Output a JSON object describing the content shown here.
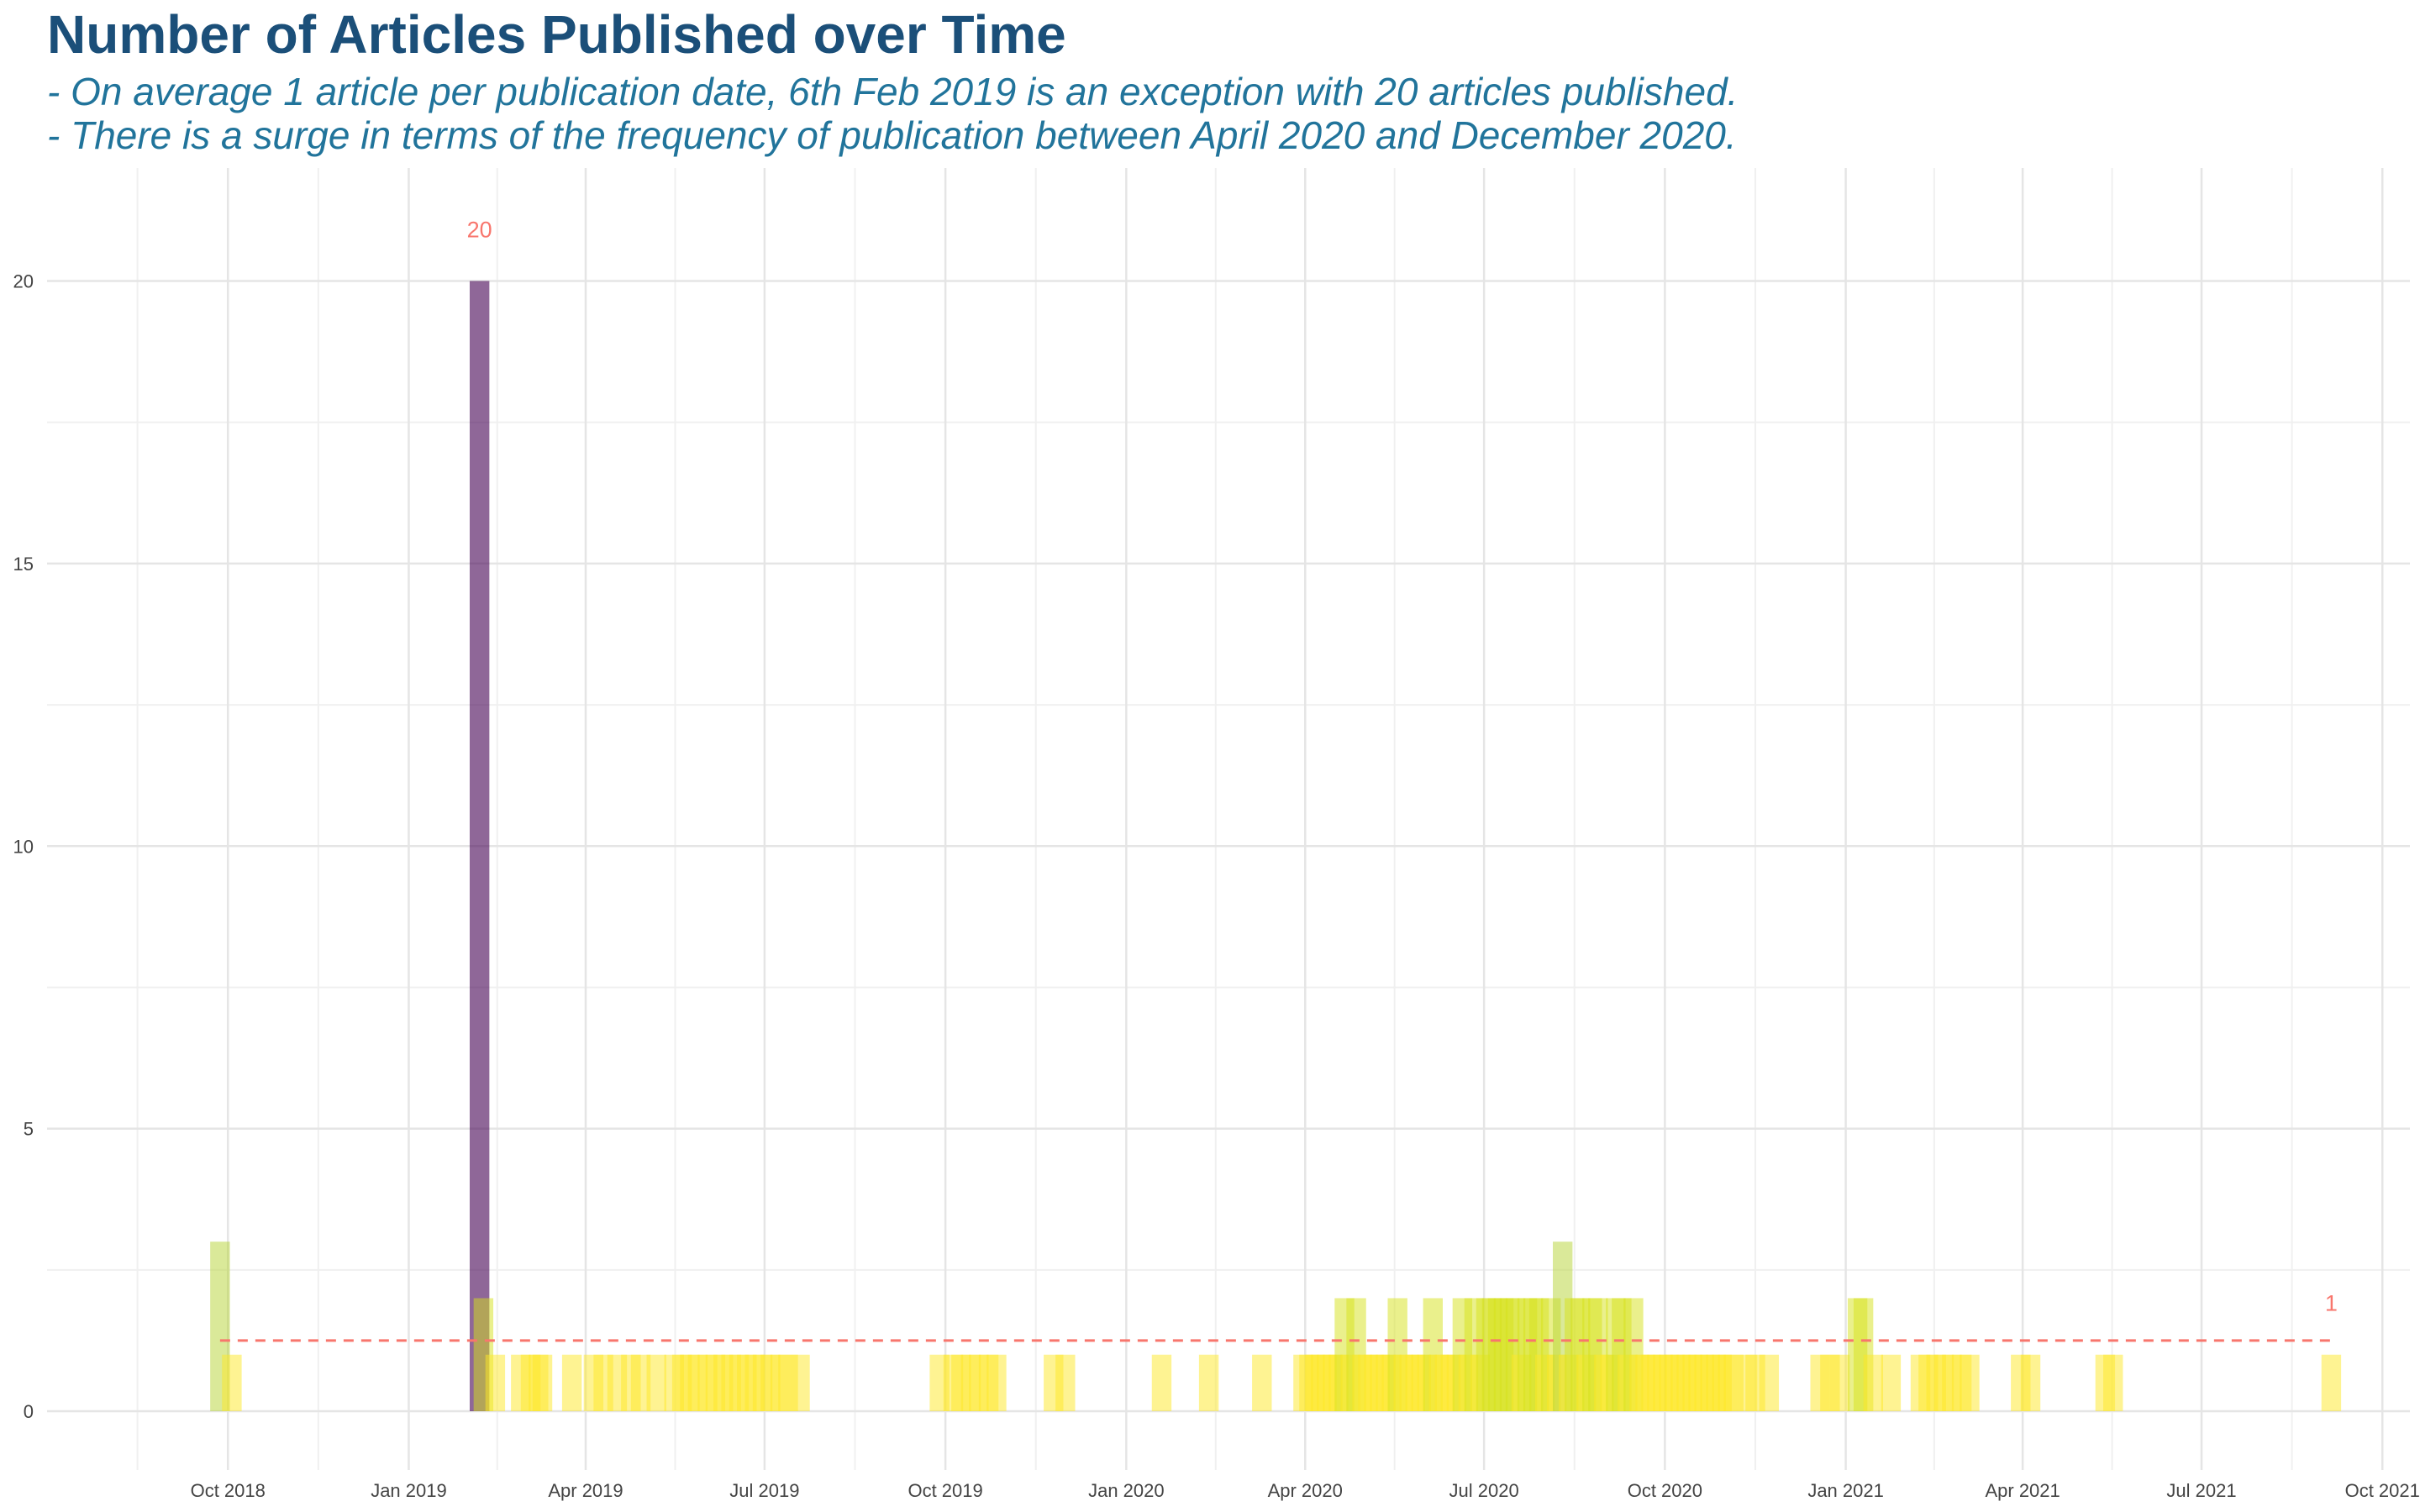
{
  "chart_data": {
    "type": "bar",
    "title": "Number of Articles Published over Time",
    "subtitle": [
      "- On average 1 article per publication date, 6th Feb 2019 is an exception with 20 articles published.",
      "- There is a surge in terms of the frequency of publication between April 2020 and December 2020."
    ],
    "xlabel": "",
    "ylabel": "",
    "x_type": "date",
    "xlim": [
      "2018-07-01",
      "2021-10-15"
    ],
    "ylim": [
      0,
      22
    ],
    "grid": true,
    "legend": "none",
    "y_ticks": [
      0,
      5,
      10,
      15,
      20
    ],
    "x_ticks": [
      {
        "date": "2018-10-01",
        "label": "Oct 2018"
      },
      {
        "date": "2019-01-01",
        "label": "Jan 2019"
      },
      {
        "date": "2019-04-01",
        "label": "Apr 2019"
      },
      {
        "date": "2019-07-01",
        "label": "Jul 2019"
      },
      {
        "date": "2019-10-01",
        "label": "Oct 2019"
      },
      {
        "date": "2020-01-01",
        "label": "Jan 2020"
      },
      {
        "date": "2020-04-01",
        "label": "Apr 2020"
      },
      {
        "date": "2020-07-01",
        "label": "Jul 2020"
      },
      {
        "date": "2020-10-01",
        "label": "Oct 2020"
      },
      {
        "date": "2021-01-01",
        "label": "Jan 2021"
      },
      {
        "date": "2021-04-01",
        "label": "Apr 2021"
      },
      {
        "date": "2021-07-01",
        "label": "Jul 2021"
      },
      {
        "date": "2021-10-01",
        "label": "Oct 2021"
      }
    ],
    "mean_line": {
      "value": 1.25,
      "from": "2018-09-27",
      "to": "2021-09-05",
      "color": "#f8766d",
      "style": "dashed"
    },
    "annotations": [
      {
        "text": "20",
        "date": "2019-02-06",
        "value": 20
      },
      {
        "text": "1",
        "date": "2021-09-05",
        "value": 1
      }
    ],
    "colors": {
      "max": "#440154",
      "high": "#b5d334",
      "mid": "#d6e21a",
      "low": "#fde725",
      "annotation": "#f8766d"
    },
    "series": [
      {
        "date": "2018-09-27",
        "count": 3
      },
      {
        "date": "2018-10-03",
        "count": 1
      },
      {
        "date": "2019-02-06",
        "count": 20
      },
      {
        "date": "2019-02-08",
        "count": 2
      },
      {
        "date": "2019-02-14",
        "count": 1
      },
      {
        "date": "2019-02-27",
        "count": 1
      },
      {
        "date": "2019-03-04",
        "count": 1
      },
      {
        "date": "2019-03-08",
        "count": 1
      },
      {
        "date": "2019-03-10",
        "count": 1
      },
      {
        "date": "2019-03-25",
        "count": 1
      },
      {
        "date": "2019-04-05",
        "count": 1
      },
      {
        "date": "2019-04-10",
        "count": 1
      },
      {
        "date": "2019-04-17",
        "count": 1
      },
      {
        "date": "2019-04-24",
        "count": 1
      },
      {
        "date": "2019-04-29",
        "count": 1
      },
      {
        "date": "2019-05-07",
        "count": 1
      },
      {
        "date": "2019-05-16",
        "count": 1
      },
      {
        "date": "2019-05-20",
        "count": 1
      },
      {
        "date": "2019-05-24",
        "count": 1
      },
      {
        "date": "2019-05-28",
        "count": 1
      },
      {
        "date": "2019-06-02",
        "count": 1
      },
      {
        "date": "2019-06-06",
        "count": 1
      },
      {
        "date": "2019-06-10",
        "count": 1
      },
      {
        "date": "2019-06-14",
        "count": 1
      },
      {
        "date": "2019-06-18",
        "count": 1
      },
      {
        "date": "2019-06-22",
        "count": 1
      },
      {
        "date": "2019-06-26",
        "count": 1
      },
      {
        "date": "2019-06-30",
        "count": 1
      },
      {
        "date": "2019-07-04",
        "count": 1
      },
      {
        "date": "2019-07-09",
        "count": 1
      },
      {
        "date": "2019-07-13",
        "count": 1
      },
      {
        "date": "2019-07-19",
        "count": 1
      },
      {
        "date": "2019-09-28",
        "count": 1
      },
      {
        "date": "2019-10-05",
        "count": 1
      },
      {
        "date": "2019-10-09",
        "count": 1
      },
      {
        "date": "2019-10-14",
        "count": 1
      },
      {
        "date": "2019-10-18",
        "count": 1
      },
      {
        "date": "2019-10-23",
        "count": 1
      },
      {
        "date": "2019-10-27",
        "count": 1
      },
      {
        "date": "2019-11-25",
        "count": 1
      },
      {
        "date": "2019-12-01",
        "count": 1
      },
      {
        "date": "2020-01-19",
        "count": 1
      },
      {
        "date": "2020-02-12",
        "count": 1
      },
      {
        "date": "2020-03-10",
        "count": 1
      },
      {
        "date": "2020-03-31",
        "count": 1
      },
      {
        "date": "2020-04-03",
        "count": 1
      },
      {
        "date": "2020-04-06",
        "count": 1
      },
      {
        "date": "2020-04-09",
        "count": 1
      },
      {
        "date": "2020-04-12",
        "count": 1
      },
      {
        "date": "2020-04-15",
        "count": 1
      },
      {
        "date": "2020-04-18",
        "count": 1
      },
      {
        "date": "2020-04-21",
        "count": 2
      },
      {
        "date": "2020-04-24",
        "count": 1
      },
      {
        "date": "2020-04-27",
        "count": 2
      },
      {
        "date": "2020-04-30",
        "count": 1
      },
      {
        "date": "2020-05-03",
        "count": 1
      },
      {
        "date": "2020-05-06",
        "count": 1
      },
      {
        "date": "2020-05-09",
        "count": 1
      },
      {
        "date": "2020-05-12",
        "count": 1
      },
      {
        "date": "2020-05-15",
        "count": 1
      },
      {
        "date": "2020-05-18",
        "count": 2
      },
      {
        "date": "2020-05-21",
        "count": 1
      },
      {
        "date": "2020-05-24",
        "count": 1
      },
      {
        "date": "2020-05-27",
        "count": 1
      },
      {
        "date": "2020-05-30",
        "count": 1
      },
      {
        "date": "2020-06-02",
        "count": 1
      },
      {
        "date": "2020-06-05",
        "count": 2
      },
      {
        "date": "2020-06-08",
        "count": 1
      },
      {
        "date": "2020-06-11",
        "count": 1
      },
      {
        "date": "2020-06-14",
        "count": 1
      },
      {
        "date": "2020-06-17",
        "count": 1
      },
      {
        "date": "2020-06-20",
        "count": 2
      },
      {
        "date": "2020-06-23",
        "count": 1
      },
      {
        "date": "2020-06-26",
        "count": 2
      },
      {
        "date": "2020-06-29",
        "count": 1
      },
      {
        "date": "2020-07-02",
        "count": 2
      },
      {
        "date": "2020-07-05",
        "count": 2
      },
      {
        "date": "2020-07-08",
        "count": 2
      },
      {
        "date": "2020-07-11",
        "count": 2
      },
      {
        "date": "2020-07-14",
        "count": 2
      },
      {
        "date": "2020-07-17",
        "count": 2
      },
      {
        "date": "2020-07-20",
        "count": 1
      },
      {
        "date": "2020-07-23",
        "count": 2
      },
      {
        "date": "2020-07-26",
        "count": 2
      },
      {
        "date": "2020-07-29",
        "count": 2
      },
      {
        "date": "2020-08-01",
        "count": 1
      },
      {
        "date": "2020-08-04",
        "count": 2
      },
      {
        "date": "2020-08-07",
        "count": 1
      },
      {
        "date": "2020-08-10",
        "count": 3
      },
      {
        "date": "2020-08-13",
        "count": 1
      },
      {
        "date": "2020-08-16",
        "count": 2
      },
      {
        "date": "2020-08-19",
        "count": 2
      },
      {
        "date": "2020-08-22",
        "count": 1
      },
      {
        "date": "2020-08-25",
        "count": 2
      },
      {
        "date": "2020-08-28",
        "count": 2
      },
      {
        "date": "2020-08-31",
        "count": 1
      },
      {
        "date": "2020-09-03",
        "count": 1
      },
      {
        "date": "2020-09-06",
        "count": 2
      },
      {
        "date": "2020-09-09",
        "count": 2
      },
      {
        "date": "2020-09-12",
        "count": 1
      },
      {
        "date": "2020-09-15",
        "count": 2
      },
      {
        "date": "2020-09-18",
        "count": 1
      },
      {
        "date": "2020-09-21",
        "count": 1
      },
      {
        "date": "2020-09-24",
        "count": 1
      },
      {
        "date": "2020-09-27",
        "count": 1
      },
      {
        "date": "2020-09-30",
        "count": 1
      },
      {
        "date": "2020-10-03",
        "count": 1
      },
      {
        "date": "2020-10-06",
        "count": 1
      },
      {
        "date": "2020-10-09",
        "count": 1
      },
      {
        "date": "2020-10-12",
        "count": 1
      },
      {
        "date": "2020-10-15",
        "count": 1
      },
      {
        "date": "2020-10-18",
        "count": 1
      },
      {
        "date": "2020-10-21",
        "count": 1
      },
      {
        "date": "2020-10-24",
        "count": 1
      },
      {
        "date": "2020-10-27",
        "count": 1
      },
      {
        "date": "2020-10-30",
        "count": 1
      },
      {
        "date": "2020-11-02",
        "count": 1
      },
      {
        "date": "2020-11-05",
        "count": 1
      },
      {
        "date": "2020-11-12",
        "count": 1
      },
      {
        "date": "2020-11-16",
        "count": 1
      },
      {
        "date": "2020-11-23",
        "count": 1
      },
      {
        "date": "2020-12-19",
        "count": 1
      },
      {
        "date": "2020-12-24",
        "count": 1
      },
      {
        "date": "2020-12-29",
        "count": 1
      },
      {
        "date": "2021-01-07",
        "count": 2
      },
      {
        "date": "2021-01-10",
        "count": 2
      },
      {
        "date": "2021-01-15",
        "count": 1
      },
      {
        "date": "2021-01-24",
        "count": 1
      },
      {
        "date": "2021-02-08",
        "count": 1
      },
      {
        "date": "2021-02-12",
        "count": 1
      },
      {
        "date": "2021-02-16",
        "count": 1
      },
      {
        "date": "2021-02-20",
        "count": 1
      },
      {
        "date": "2021-02-24",
        "count": 1
      },
      {
        "date": "2021-03-01",
        "count": 1
      },
      {
        "date": "2021-03-05",
        "count": 1
      },
      {
        "date": "2021-03-31",
        "count": 1
      },
      {
        "date": "2021-04-05",
        "count": 1
      },
      {
        "date": "2021-05-13",
        "count": 1
      },
      {
        "date": "2021-05-17",
        "count": 1
      },
      {
        "date": "2021-09-05",
        "count": 1
      }
    ]
  }
}
